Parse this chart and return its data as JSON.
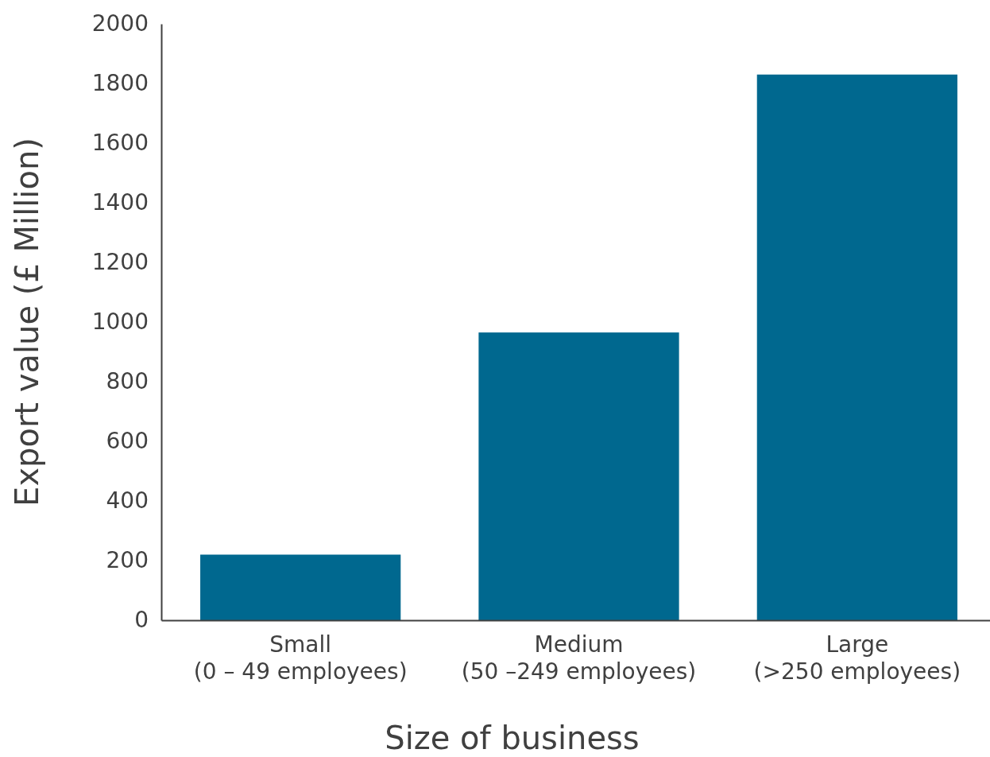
{
  "chart_data": {
    "type": "bar",
    "xlabel": "Size of business",
    "ylabel": "Export value (£ Million)",
    "categories": [
      "Small\n(0 – 49 employees)",
      "Medium\n(50 –249 employees)",
      "Large\n(>250 employees)"
    ],
    "values": [
      220,
      965,
      1830
    ],
    "color": "#00688f",
    "ylim": [
      0,
      2000
    ],
    "yticks": [
      0,
      200,
      400,
      600,
      800,
      1000,
      1200,
      1400,
      1600,
      1800,
      2000
    ],
    "grid": false
  }
}
